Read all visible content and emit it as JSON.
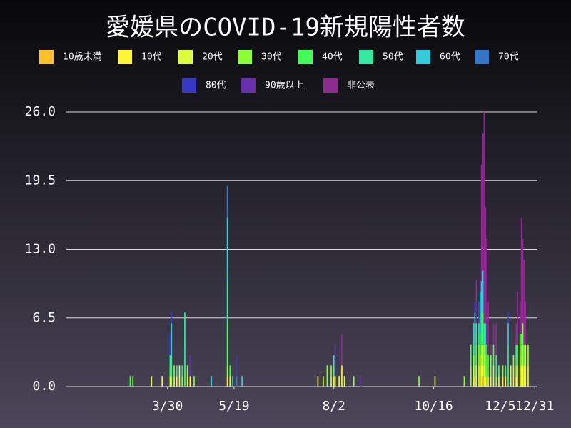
{
  "chart_data": {
    "type": "stacked_bar",
    "title": "愛媛県のCOVID-19新規陽性者数",
    "x": [
      62,
      64,
      78,
      86,
      92,
      93,
      95,
      97,
      99,
      101,
      103,
      105,
      107,
      110,
      123,
      135,
      137,
      139,
      142,
      146,
      203,
      207,
      210,
      213,
      215,
      216,
      219,
      221,
      223,
      230,
      235,
      279,
      291,
      313,
      318,
      320,
      321,
      322,
      324,
      325,
      326,
      327,
      328,
      329,
      330,
      331,
      333,
      335,
      337,
      339,
      342,
      344,
      346,
      348,
      350,
      352,
      353,
      355,
      356,
      357,
      358,
      359,
      361
    ],
    "xlim": [
      14,
      368
    ],
    "xticks": [
      {
        "value": 90,
        "label": "3/30"
      },
      {
        "value": 140,
        "label": "5/19"
      },
      {
        "value": 215,
        "label": "8/2"
      },
      {
        "value": 290,
        "label": "10/16"
      },
      {
        "value": 340,
        "label": "12/5"
      },
      {
        "value": 366,
        "label": "12/31"
      }
    ],
    "ylim": [
      0,
      26
    ],
    "yticks": [
      {
        "value": 0,
        "label": "0.0"
      },
      {
        "value": 6.5,
        "label": "6.5"
      },
      {
        "value": 13,
        "label": "13.0"
      },
      {
        "value": 19.5,
        "label": "19.5"
      },
      {
        "value": 26,
        "label": "26.0"
      }
    ],
    "grid": true,
    "series": [
      {
        "name": "10歳未満",
        "color": "#ffbf29",
        "values": [
          0,
          0,
          0,
          0,
          0,
          0,
          0,
          0,
          0,
          0,
          0,
          0,
          0,
          0,
          0,
          0,
          0,
          0,
          0,
          0,
          0,
          0,
          0,
          0,
          0,
          0,
          0,
          0,
          0,
          0,
          0,
          0,
          0,
          0,
          0,
          0,
          0,
          0,
          0,
          0,
          0,
          1,
          0,
          0,
          0,
          0,
          0,
          0,
          0,
          0,
          0,
          0,
          0,
          0,
          0,
          0,
          0,
          0,
          0,
          0,
          0,
          0,
          0
        ]
      },
      {
        "name": "10代",
        "color": "#fff533",
        "values": [
          0,
          0,
          0,
          1,
          0,
          0,
          0,
          1,
          0,
          0,
          0,
          0,
          1,
          0,
          0,
          1,
          0,
          0,
          0,
          0,
          1,
          0,
          0,
          0,
          1,
          0,
          0,
          2,
          0,
          0,
          0,
          0,
          0,
          0,
          0,
          0,
          1,
          0,
          0,
          1,
          0,
          1,
          0,
          0,
          0,
          1,
          0,
          0,
          0,
          0,
          1,
          0,
          0,
          1,
          0,
          1,
          0,
          1,
          0,
          2,
          0,
          2,
          0
        ]
      },
      {
        "name": "20代",
        "color": "#dcff3a",
        "values": [
          0,
          0,
          1,
          0,
          1,
          0,
          1,
          0,
          2,
          0,
          0,
          1,
          0,
          0,
          0,
          0,
          1,
          0,
          0,
          0,
          0,
          1,
          0,
          1,
          0,
          1,
          1,
          0,
          1,
          0,
          0,
          0,
          1,
          0,
          0,
          2,
          0,
          2,
          2,
          2,
          2,
          2,
          2,
          1,
          2,
          0,
          1,
          2,
          0,
          1,
          0,
          1,
          0,
          1,
          2,
          0,
          2,
          2,
          2,
          2,
          2,
          2,
          2
        ]
      },
      {
        "name": "30代",
        "color": "#8cff33",
        "values": [
          0,
          1,
          0,
          0,
          0,
          1,
          1,
          0,
          0,
          1,
          0,
          1,
          0,
          1,
          0,
          1,
          0,
          0,
          0,
          0,
          0,
          0,
          2,
          1,
          0,
          0,
          0,
          0,
          0,
          1,
          0,
          1,
          0,
          1,
          2,
          1,
          0,
          0,
          2,
          0,
          2,
          0,
          2,
          0,
          2,
          0,
          2,
          0,
          1,
          0,
          1,
          0,
          0,
          0,
          1,
          1,
          0,
          2,
          0,
          2,
          0,
          0,
          2
        ]
      },
      {
        "name": "40代",
        "color": "#44ff55",
        "values": [
          1,
          0,
          0,
          0,
          1,
          0,
          0,
          0,
          0,
          0,
          2,
          0,
          0,
          0,
          0,
          4,
          1,
          0,
          0,
          0,
          0,
          0,
          0,
          0,
          1,
          0,
          0,
          0,
          0,
          0,
          0,
          0,
          0,
          0,
          2,
          0,
          2,
          2,
          0,
          2,
          0,
          3,
          0,
          2,
          0,
          2,
          0,
          2,
          0,
          1,
          0,
          0,
          2,
          0,
          0,
          0,
          2,
          0,
          2,
          0,
          2,
          0,
          0
        ]
      },
      {
        "name": "50代",
        "color": "#33e8a0",
        "values": [
          0,
          0,
          0,
          0,
          1,
          2,
          0,
          1,
          0,
          0,
          5,
          0,
          0,
          0,
          0,
          4,
          0,
          0,
          0,
          0,
          0,
          0,
          0,
          0,
          1,
          0,
          0,
          0,
          0,
          0,
          0,
          0,
          0,
          0,
          0,
          1,
          2,
          2,
          2,
          0,
          3,
          0,
          2,
          0,
          0,
          0,
          0,
          0,
          2,
          0,
          0,
          1,
          2,
          0,
          0,
          2,
          0,
          0,
          1,
          0,
          0,
          0,
          0
        ]
      },
      {
        "name": "60代",
        "color": "#33ccdd",
        "values": [
          0,
          0,
          0,
          0,
          0,
          3,
          0,
          0,
          0,
          1,
          0,
          0,
          0,
          0,
          1,
          6,
          0,
          1,
          0,
          1,
          0,
          0,
          0,
          0,
          0,
          0,
          0,
          0,
          0,
          0,
          0,
          0,
          0,
          0,
          0,
          2,
          2,
          0,
          0,
          4,
          3,
          4,
          0,
          3,
          0,
          0,
          0,
          0,
          0,
          0,
          0,
          0,
          2,
          0,
          0,
          0,
          0,
          0,
          0,
          0,
          0,
          0,
          0
        ]
      },
      {
        "name": "70代",
        "color": "#3377cc",
        "values": [
          0,
          0,
          0,
          0,
          0,
          0,
          0,
          0,
          0,
          0,
          0,
          0,
          0,
          0,
          0,
          3,
          0,
          0,
          1,
          0,
          0,
          0,
          0,
          0,
          0,
          0,
          0,
          0,
          0,
          0,
          0,
          0,
          0,
          0,
          0,
          0,
          0,
          0,
          0,
          0,
          0,
          0,
          0,
          0,
          0,
          0,
          0,
          0,
          0,
          0,
          0,
          0,
          0,
          0,
          0,
          0,
          0,
          0,
          0,
          0,
          0,
          0,
          0
        ]
      },
      {
        "name": "80代",
        "color": "#3838c8",
        "values": [
          0,
          0,
          0,
          0,
          2,
          1,
          0,
          0,
          0,
          0,
          0,
          0,
          0,
          0,
          0,
          0,
          0,
          0,
          2,
          0,
          0,
          0,
          0,
          0,
          0,
          2,
          0,
          0,
          0,
          0,
          0,
          0,
          0,
          0,
          0,
          0,
          1,
          2,
          0,
          0,
          0,
          0,
          0,
          0,
          0,
          0,
          0,
          0,
          0,
          0,
          0,
          0,
          1,
          0,
          0,
          0,
          0,
          0,
          0,
          0,
          0,
          0,
          0
        ]
      },
      {
        "name": "90歳以上",
        "color": "#6a2eb0",
        "values": [
          0,
          0,
          0,
          0,
          0,
          0,
          0,
          0,
          0,
          0,
          0,
          0,
          2,
          0,
          0,
          0,
          0,
          0,
          0,
          0,
          0,
          0,
          0,
          0,
          0,
          1,
          0,
          0,
          0,
          0,
          1,
          0,
          0,
          0,
          0,
          0,
          0,
          0,
          0,
          0,
          0,
          0,
          0,
          0,
          0,
          0,
          0,
          0,
          0,
          0,
          0,
          0,
          0,
          0,
          0,
          0,
          0,
          0,
          0,
          0,
          0,
          0,
          0
        ]
      },
      {
        "name": "非公表",
        "color": "#8e2a90",
        "values": [
          0,
          0,
          0,
          0,
          0,
          0,
          0,
          0,
          0,
          0,
          0,
          0,
          0,
          0,
          0,
          0,
          0,
          0,
          0,
          0,
          0,
          0,
          0,
          0,
          0,
          0,
          0,
          3,
          0,
          0,
          0,
          0,
          0,
          0,
          0,
          0,
          0,
          2,
          2,
          1,
          11,
          13,
          20,
          11,
          10,
          5,
          1,
          2,
          3,
          0,
          0,
          0,
          0,
          0,
          0,
          2,
          5,
          3,
          11,
          8,
          8,
          4,
          0
        ]
      }
    ]
  }
}
